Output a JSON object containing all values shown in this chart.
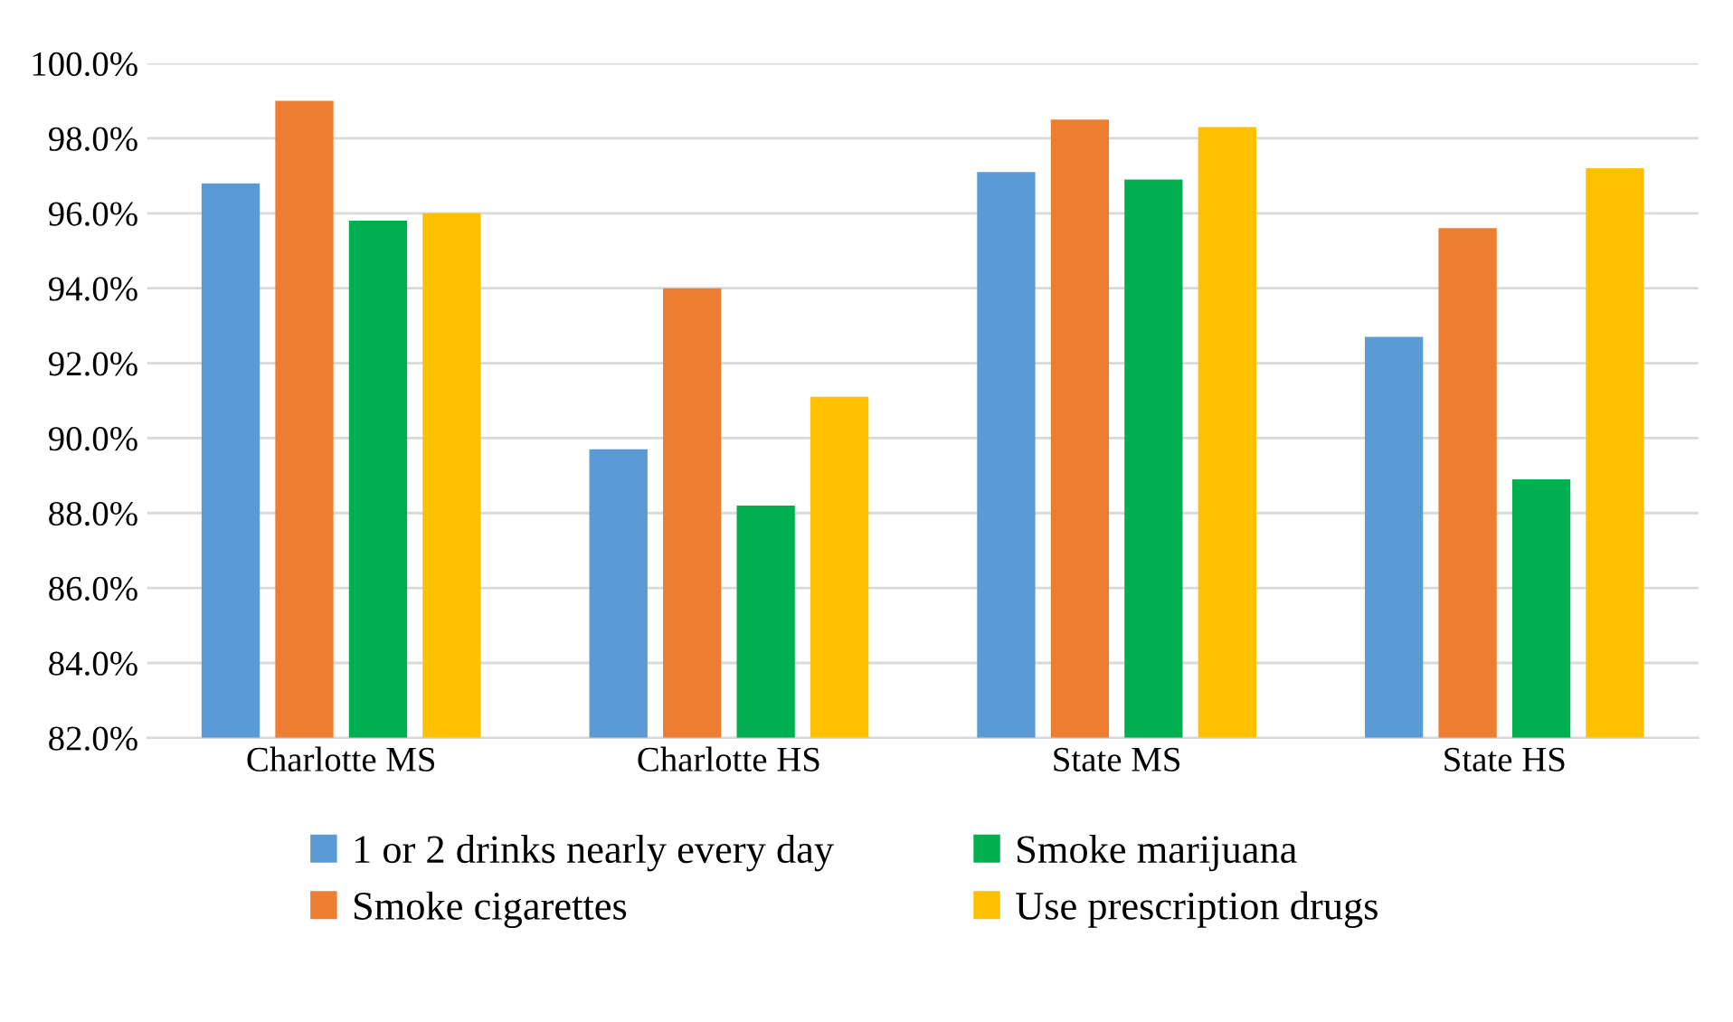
{
  "chart_data": {
    "type": "bar",
    "categories": [
      "Charlotte MS",
      "Charlotte HS",
      "State MS",
      "State HS"
    ],
    "series": [
      {
        "name": "1 or 2 drinks nearly every day",
        "color": "#5b9bd5",
        "values": [
          96.8,
          89.7,
          97.1,
          92.7
        ]
      },
      {
        "name": "Smoke cigarettes",
        "color": "#ed7d31",
        "values": [
          99.0,
          94.0,
          98.5,
          95.6
        ]
      },
      {
        "name": "Smoke marijuana",
        "color": "#00b050",
        "values": [
          95.8,
          88.2,
          96.9,
          88.9
        ]
      },
      {
        "name": "Use prescription drugs",
        "color": "#ffc000",
        "values": [
          96.0,
          91.1,
          98.3,
          97.2
        ]
      }
    ],
    "ylim": [
      82,
      100
    ],
    "yticks": [
      {
        "value": 82,
        "label": "82.0%"
      },
      {
        "value": 84,
        "label": "84.0%"
      },
      {
        "value": 86,
        "label": "86.0%"
      },
      {
        "value": 88,
        "label": "88.0%"
      },
      {
        "value": 90,
        "label": "90.0%"
      },
      {
        "value": 92,
        "label": "92.0%"
      },
      {
        "value": 94,
        "label": "94.0%"
      },
      {
        "value": 96,
        "label": "96.0%"
      },
      {
        "value": 98,
        "label": "98.0%"
      },
      {
        "value": 100,
        "label": "100.0%"
      }
    ],
    "grid": "y",
    "legend": "bottom"
  }
}
